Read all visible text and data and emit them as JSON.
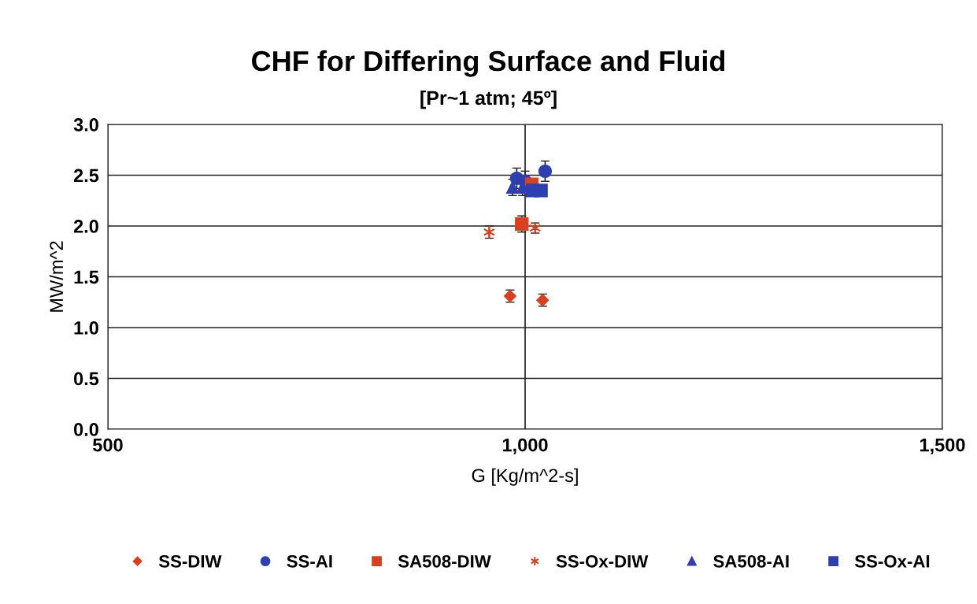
{
  "chart_data": {
    "type": "scatter",
    "title": "CHF for Differing Surface and Fluid",
    "subtitle": "[Pr~1 atm; 45º]",
    "xlabel": "G [Kg/m^2-s]",
    "ylabel": "MW/m^2",
    "xlim": [
      500,
      1500
    ],
    "xticks": [
      500,
      {
        "value": 1000,
        "label": "1,000"
      },
      {
        "value": 1500,
        "label": "1,500"
      }
    ],
    "ylim": [
      0,
      3
    ],
    "yticks": [
      {
        "value": 0,
        "label": "0.0"
      },
      {
        "value": 0.5,
        "label": "0.5"
      },
      {
        "value": 1,
        "label": "1.0"
      },
      {
        "value": 1.5,
        "label": "1.5"
      },
      {
        "value": 2,
        "label": "2.0"
      },
      {
        "value": 2.5,
        "label": "2.5"
      },
      {
        "value": 3,
        "label": "3.0"
      }
    ],
    "grid": true,
    "legend": "bottom",
    "series": [
      {
        "name": "SS-DIW",
        "color": "#d9401e",
        "marker": "diamond",
        "x": [
          982,
          1021
        ],
        "values": [
          1.31,
          1.27
        ],
        "errors": [
          0.06,
          0.06
        ]
      },
      {
        "name": "SS-AI",
        "color": "#2e3fb0",
        "marker": "circle",
        "x": [
          990,
          1000,
          1024
        ],
        "values": [
          2.47,
          2.44,
          2.54
        ],
        "errors": [
          0.1,
          0.1,
          0.1
        ]
      },
      {
        "name": "SA508-DIW",
        "color": "#d9401e",
        "marker": "square",
        "x": [
          996,
          1008
        ],
        "values": [
          2.02,
          2.41
        ],
        "errors": [
          0.08,
          null
        ]
      },
      {
        "name": "SS-Ox-DIW",
        "color": "#d9401e",
        "marker": "cross",
        "x": [
          957,
          1012
        ],
        "values": [
          1.94,
          1.98
        ],
        "errors": [
          0.06,
          0.05
        ]
      },
      {
        "name": "SA508-AI",
        "color": "#2e3fb0",
        "marker": "triangle",
        "x": [
          985,
          997
        ],
        "values": [
          2.38,
          2.38
        ],
        "errors": [
          0.08,
          0.08
        ]
      },
      {
        "name": "SS-Ox-AI",
        "color": "#2e3fb0",
        "marker": "square",
        "x": [
          1009,
          1019
        ],
        "values": [
          2.35,
          2.35
        ]
      }
    ]
  }
}
